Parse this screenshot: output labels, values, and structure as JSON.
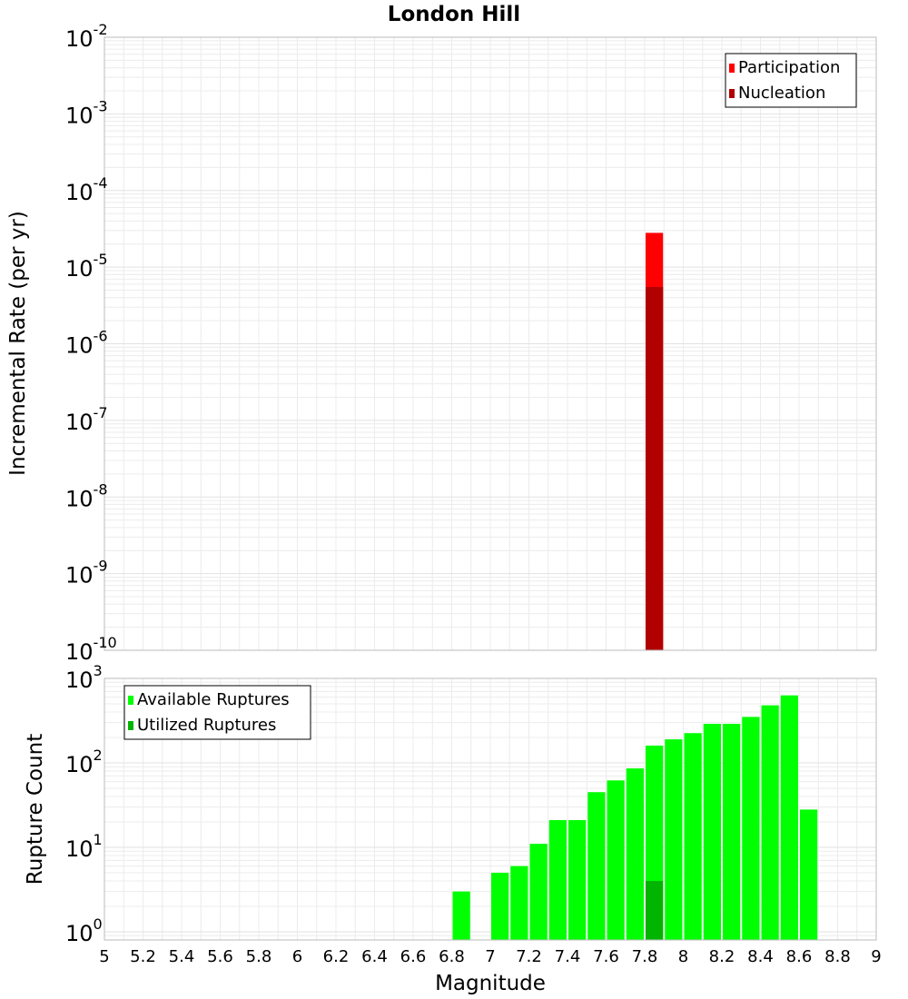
{
  "colors": {
    "participation": "#ff0000",
    "nucleation": "#b10000",
    "available": "#00ff00",
    "utilized": "#00b400",
    "grid": "#ececec",
    "frame": "#bbbbbb"
  },
  "chart_data": [
    {
      "type": "bar",
      "title": "London Hill",
      "xlabel": "",
      "ylabel": "Incremental Rate (per yr)",
      "yscale": "log",
      "ylim": [
        1e-10,
        0.01
      ],
      "xlim": [
        5,
        9
      ],
      "y_tick_labels": [
        {
          "base": "10",
          "exp": "-10"
        },
        {
          "base": "10",
          "exp": "-9"
        },
        {
          "base": "10",
          "exp": "-8"
        },
        {
          "base": "10",
          "exp": "-7"
        },
        {
          "base": "10",
          "exp": "-6"
        },
        {
          "base": "10",
          "exp": "-5"
        },
        {
          "base": "10",
          "exp": "-4"
        },
        {
          "base": "10",
          "exp": "-3"
        },
        {
          "base": "10",
          "exp": "-2"
        }
      ],
      "legend_position": "top-right",
      "series": [
        {
          "name": "Participation",
          "color_key": "participation",
          "x": [
            7.85
          ],
          "values": [
            2.8e-05
          ]
        },
        {
          "name": "Nucleation",
          "color_key": "nucleation",
          "x": [
            7.85
          ],
          "values": [
            5.5e-06
          ]
        }
      ]
    },
    {
      "type": "bar",
      "xlabel": "Magnitude",
      "ylabel": "Rupture Count",
      "yscale": "log",
      "ylim": [
        0.8,
        1000
      ],
      "xlim": [
        5,
        9
      ],
      "x_tick_labels": [
        "5",
        "5.2",
        "5.4",
        "5.6",
        "5.8",
        "6",
        "6.2",
        "6.4",
        "6.6",
        "6.8",
        "7",
        "7.2",
        "7.4",
        "7.6",
        "7.8",
        "8",
        "8.2",
        "8.4",
        "8.6",
        "8.8",
        "9"
      ],
      "y_tick_labels": [
        {
          "base": "10",
          "exp": "0"
        },
        {
          "base": "10",
          "exp": "1"
        },
        {
          "base": "10",
          "exp": "2"
        },
        {
          "base": "10",
          "exp": "3"
        }
      ],
      "legend_position": "top-left",
      "series": [
        {
          "name": "Available Ruptures",
          "color_key": "available",
          "x": [
            6.85,
            7.05,
            7.15,
            7.25,
            7.35,
            7.45,
            7.55,
            7.65,
            7.75,
            7.85,
            7.95,
            8.05,
            8.15,
            8.25,
            8.35,
            8.45,
            8.55,
            8.65
          ],
          "values": [
            3,
            5,
            6,
            11,
            21,
            21,
            45,
            62,
            86,
            160,
            190,
            225,
            290,
            290,
            350,
            480,
            630,
            28
          ]
        },
        {
          "name": "Utilized Ruptures",
          "color_key": "utilized",
          "x": [
            7.85
          ],
          "values": [
            4
          ]
        }
      ]
    }
  ]
}
